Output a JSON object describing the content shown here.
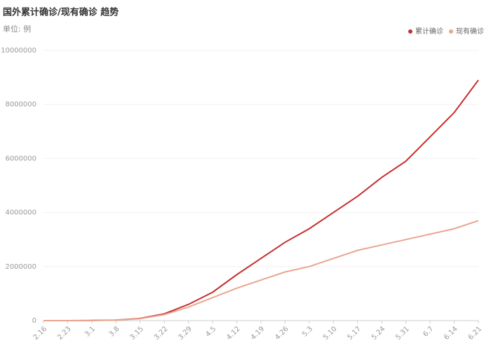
{
  "chart_data": {
    "type": "line",
    "title": "国外累计确诊/现有确诊 趋势",
    "subtitle": "单位: 例",
    "categories": [
      "2.16",
      "2.23",
      "3.1",
      "3.8",
      "3.15",
      "3.22",
      "3.29",
      "4.5",
      "4.12",
      "4.19",
      "4.26",
      "5.3",
      "5.10",
      "5.17",
      "5.24",
      "5.31",
      "6.7",
      "6.14",
      "6.21"
    ],
    "series": [
      {
        "name": "累计确诊",
        "color": "#c62e2e",
        "values": [
          0,
          1000,
          5000,
          20000,
          80000,
          250000,
          600000,
          1050000,
          1700000,
          2300000,
          2900000,
          3400000,
          4000000,
          4600000,
          5300000,
          5900000,
          6800000,
          7700000,
          8900000
        ]
      },
      {
        "name": "现有确诊",
        "color": "#e9a58f",
        "values": [
          0,
          1000,
          4000,
          17000,
          70000,
          220000,
          500000,
          850000,
          1200000,
          1500000,
          1800000,
          2000000,
          2300000,
          2600000,
          2800000,
          3000000,
          3200000,
          3400000,
          3700000
        ]
      }
    ],
    "ylim": [
      0,
      10000000
    ],
    "yticks": [
      0,
      2000000,
      4000000,
      6000000,
      8000000,
      10000000
    ],
    "grid": true,
    "legend": "top-right"
  }
}
